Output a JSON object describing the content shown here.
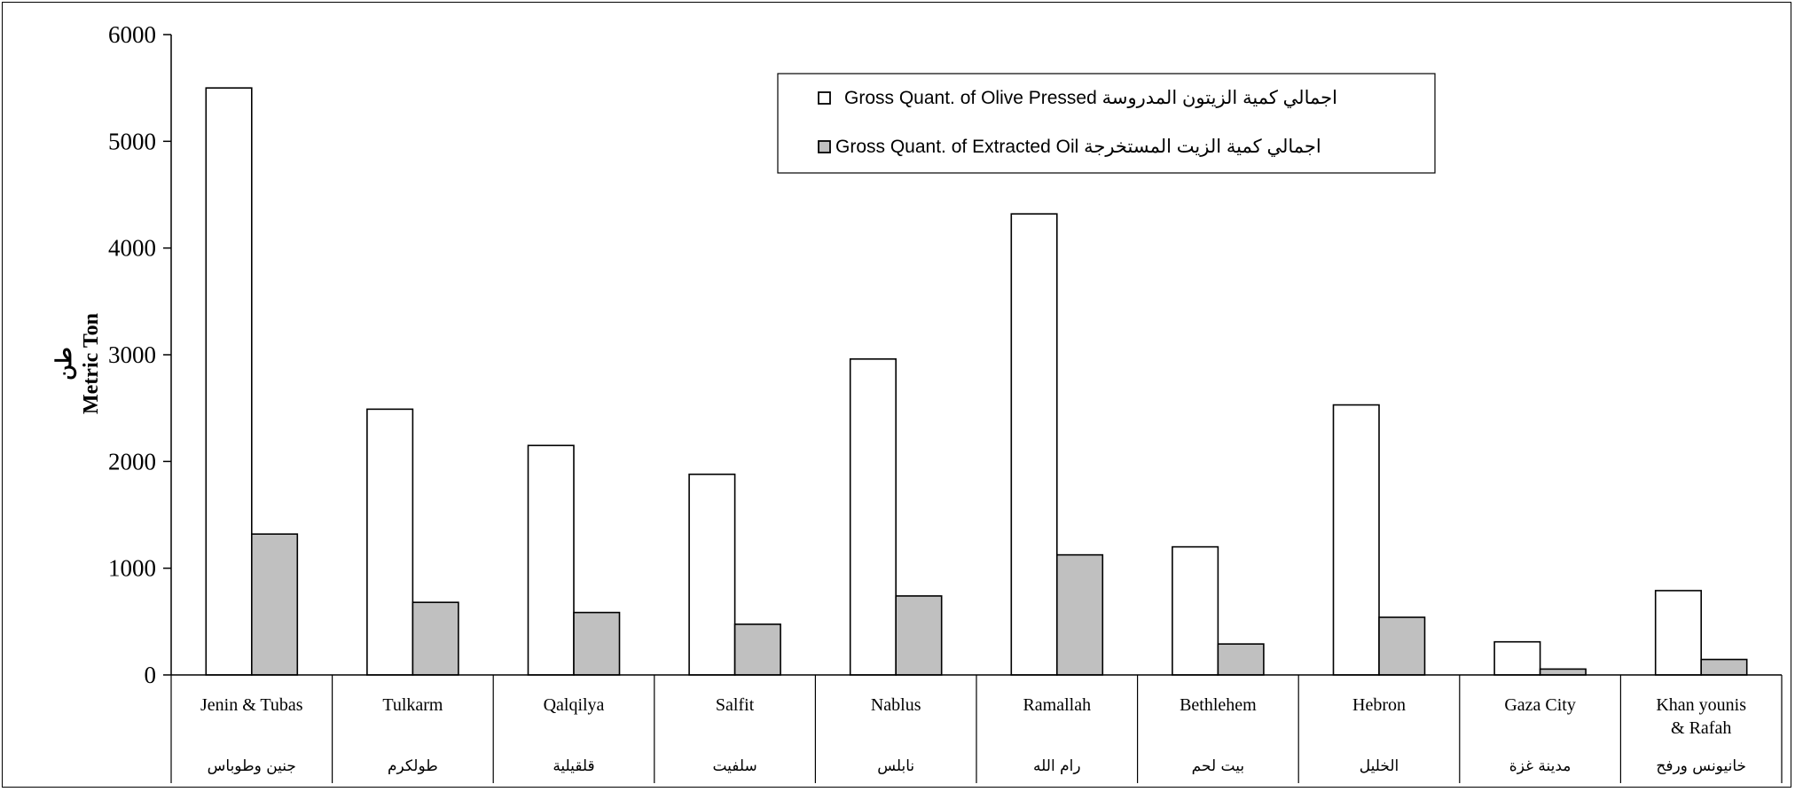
{
  "chart_data": {
    "type": "bar",
    "ylabel_en": "Metric Ton",
    "ylabel_ar": "طن",
    "ylim": [
      0,
      6000
    ],
    "yticks": [
      "0",
      "1000",
      "2000",
      "3000",
      "4000",
      "5000",
      "6000"
    ],
    "categories": [
      "Jenin & Tubas",
      "Tulkarm",
      "Qalqilya",
      "Salfit",
      "Nablus",
      "Ramallah",
      "Bethlehem",
      "Hebron",
      "Gaza City",
      "Khan younis & Rafah"
    ],
    "categories_ar": [
      "جنين وطوباس",
      "طولكرم",
      "قلقيلية",
      "سلفيت",
      "نابلس",
      "رام الله",
      "بيت لحم",
      "الخليل",
      "مدينة غزة",
      "خانيونس ورفح"
    ],
    "series": [
      {
        "name": "Gross Quant. of  Olive Pressed اجمالي كمية  الزيتون المدروسة",
        "color": "#ffffff",
        "values": [
          5500,
          2490,
          2150,
          1880,
          2960,
          4320,
          1200,
          2530,
          310,
          790
        ]
      },
      {
        "name": "Gross Quant. of Extracted Oil اجمالي كمية الزيت المستخرجة",
        "color": "#c0c0c0",
        "values": [
          1320,
          680,
          585,
          475,
          740,
          1125,
          290,
          540,
          55,
          145
        ]
      }
    ],
    "legend_position": "top-center",
    "grid": false
  }
}
